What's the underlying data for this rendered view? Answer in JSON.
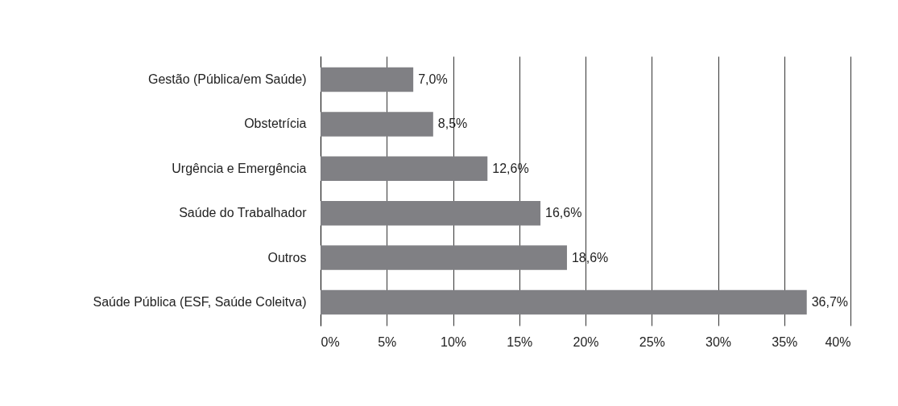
{
  "chart_data": {
    "type": "bar",
    "orientation": "horizontal",
    "categories": [
      "Gestão (Pública/em Saúde)",
      "Obstetrícia",
      "Urgência e Emergência",
      "Saúde do Trabalhador",
      "Outros",
      "Saúde Pública (ESF, Saúde Coleitva)"
    ],
    "values": [
      7.0,
      8.5,
      12.6,
      16.6,
      18.6,
      36.7
    ],
    "value_labels": [
      "7,0%",
      "8,5%",
      "12,6%",
      "16,6%",
      "18,6%",
      "36,7%"
    ],
    "color": "#808084",
    "xlim": [
      0,
      40
    ],
    "xticks": [
      {
        "value": 0,
        "label": "0%"
      },
      {
        "value": 5,
        "label": "5%"
      },
      {
        "value": 10,
        "label": "10%"
      },
      {
        "value": 15,
        "label": "15%"
      },
      {
        "value": 20,
        "label": "20%"
      },
      {
        "value": 25,
        "label": "25%"
      },
      {
        "value": 30,
        "label": "30%"
      },
      {
        "value": 35,
        "label": "35%"
      },
      {
        "value": 40,
        "label": "40%"
      }
    ],
    "grid": "x"
  }
}
